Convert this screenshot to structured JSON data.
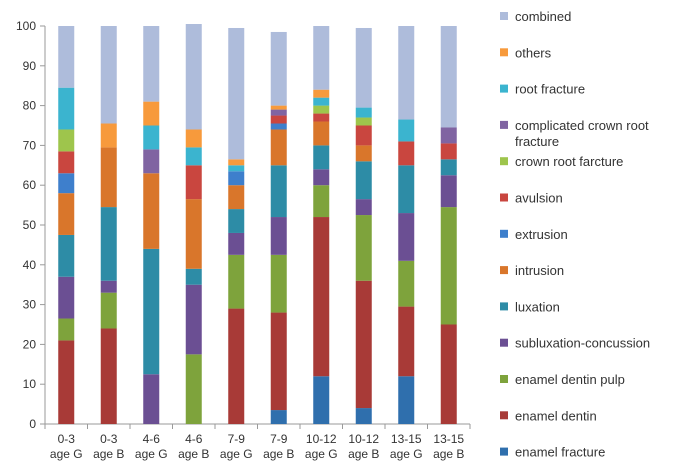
{
  "chart_data": {
    "type": "bar",
    "stacked": true,
    "categories": [
      [
        "0-3",
        "age G"
      ],
      [
        "0-3",
        "age B"
      ],
      [
        "4-6",
        "age G"
      ],
      [
        "4-6",
        "age B"
      ],
      [
        "7-9",
        "age G"
      ],
      [
        "7-9",
        "age B"
      ],
      [
        "10-12",
        "age G"
      ],
      [
        "10-12",
        "age B"
      ],
      [
        "13-15",
        "age G"
      ],
      [
        "13-15",
        "age B"
      ]
    ],
    "ylim": [
      0,
      100
    ],
    "yticks": [
      0,
      10,
      20,
      30,
      40,
      50,
      60,
      70,
      80,
      90,
      100
    ],
    "grid": false,
    "legend_position": "right",
    "series": [
      {
        "name": "enamel fracture",
        "color": "#2f6fad",
        "values": [
          0,
          0,
          0,
          0,
          0,
          3.5,
          12,
          4,
          12,
          0
        ]
      },
      {
        "name": "enamel dentin",
        "color": "#a83a37",
        "values": [
          21,
          24,
          0,
          0,
          29,
          24.5,
          40,
          32,
          17.5,
          25
        ]
      },
      {
        "name": "enamel dentin pulp",
        "color": "#7ea33c",
        "values": [
          5.5,
          9,
          0,
          17.5,
          13.5,
          14.5,
          8,
          16.5,
          11.5,
          29.5
        ]
      },
      {
        "name": "subluxation-concussion",
        "color": "#6b4f93",
        "values": [
          10.5,
          3,
          12.5,
          17.5,
          5.5,
          9.5,
          4,
          4,
          12,
          8
        ]
      },
      {
        "name": "luxation",
        "color": "#2d8ca6",
        "values": [
          10.5,
          18.5,
          31.5,
          4,
          6,
          13,
          6,
          9.5,
          12,
          4
        ]
      },
      {
        "name": "intrusion",
        "color": "#d9762b",
        "values": [
          10.5,
          15,
          19,
          17.5,
          6,
          9,
          6,
          4,
          0,
          0
        ]
      },
      {
        "name": "extrusion",
        "color": "#3e7fcc",
        "values": [
          5,
          0,
          0,
          0,
          3.5,
          1.5,
          0,
          0,
          0,
          0
        ]
      },
      {
        "name": "avulsion",
        "color": "#c9463f",
        "values": [
          5.5,
          0,
          0,
          8.5,
          0,
          2,
          2,
          5,
          6,
          4
        ]
      },
      {
        "name": "crown root farcture",
        "color": "#9ec54c",
        "values": [
          5.5,
          0,
          0,
          0,
          0,
          0,
          2,
          2,
          0,
          0
        ]
      },
      {
        "name": "complicated crown root fracture",
        "color": "#8064a2",
        "values": [
          0,
          0,
          6,
          0,
          0,
          1.5,
          0,
          0,
          0,
          4
        ]
      },
      {
        "name": "root fracture",
        "color": "#3bb4cf",
        "values": [
          10.5,
          0,
          6,
          4.5,
          1.5,
          0,
          2,
          2.5,
          5.5,
          0
        ]
      },
      {
        "name": "others",
        "color": "#f79a3c",
        "values": [
          0,
          6,
          6,
          4.5,
          1.5,
          1,
          2,
          0,
          0,
          0
        ]
      },
      {
        "name": "combined",
        "color": "#aebcdb",
        "values": [
          15.5,
          24.5,
          19,
          26.5,
          33,
          18.5,
          16,
          20,
          23.5,
          25.5
        ]
      }
    ]
  }
}
